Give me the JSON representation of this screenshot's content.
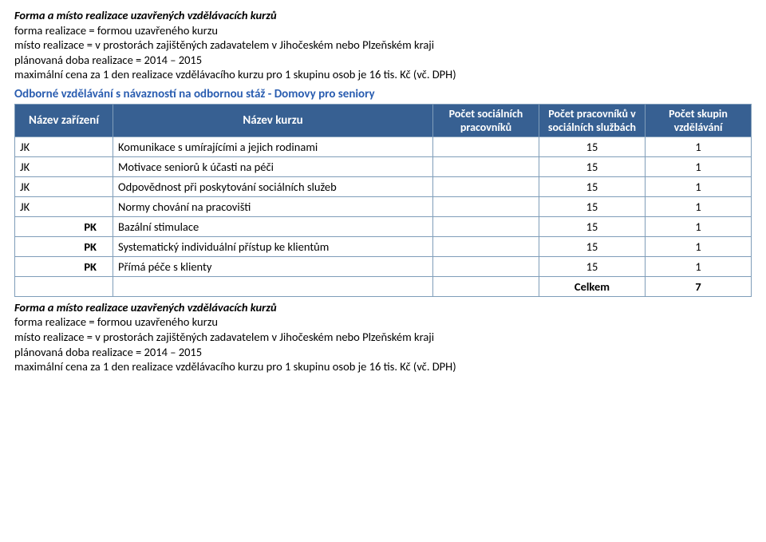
{
  "intro1": {
    "heading": "Forma a místo realizace uzavřených vzdělávacích kurzů",
    "l1": "forma realizace = formou uzavřeného kurzu",
    "l2": "místo realizace = v prostorách zajištěných zadavatelem v Jihočeském nebo Plzeňském kraji",
    "l3": "plánovaná doba realizace = 2014 – 2015",
    "l4": "maximální cena za 1 den realizace vzdělávacího kurzu pro 1 skupinu osob je 16 tis. Kč (vč. DPH)"
  },
  "section_title": "Odborné vzdělávání s návazností na odbornou stáž - Domovy pro seniory",
  "table": {
    "headers": {
      "c0": "Název zařízení",
      "c1": "Název kurzu",
      "c2": "Počet sociálních pracovníků",
      "c3": "Počet pracovníků v sociálních službách",
      "c4": "Počet skupin vzdělávání"
    },
    "rows": [
      {
        "facility": "JK",
        "fclass": "facility-jk",
        "course": "Komunikace s umírajícími a jejich rodinami",
        "v2": "",
        "v3": "15",
        "v4": "1"
      },
      {
        "facility": "JK",
        "fclass": "facility-jk",
        "course": "Motivace seniorů k účasti na péči",
        "v2": "",
        "v3": "15",
        "v4": "1"
      },
      {
        "facility": "JK",
        "fclass": "facility-jk",
        "course": "Odpovědnost při poskytování sociálních služeb",
        "v2": "",
        "v3": "15",
        "v4": "1"
      },
      {
        "facility": "JK",
        "fclass": "facility-jk",
        "course": "Normy chování na pracovišti",
        "v2": "",
        "v3": "15",
        "v4": "1"
      },
      {
        "facility": "PK",
        "fclass": "facility-pk",
        "course": "Bazální stimulace",
        "v2": "",
        "v3": "15",
        "v4": "1"
      },
      {
        "facility": "PK",
        "fclass": "facility-pk",
        "course": "Systematický individuální přístup ke klientům",
        "v2": "",
        "v3": "15",
        "v4": "1"
      },
      {
        "facility": "PK",
        "fclass": "facility-pk",
        "course": "Přímá péče s klienty",
        "v2": "",
        "v3": "15",
        "v4": "1"
      }
    ],
    "total": {
      "label": "Celkem",
      "value": "7"
    }
  },
  "intro2": {
    "heading": "Forma a místo realizace uzavřených vzdělávacích kurzů",
    "l1": "forma realizace = formou uzavřeného kurzu",
    "l2": "místo realizace = v prostorách zajištěných zadavatelem v Jihočeském nebo Plzeňském kraji",
    "l3": "plánovaná doba realizace = 2014 – 2015",
    "l4": "maximální cena za 1 den realizace vzdělávacího kurzu pro 1 skupinu osob je 16 tis. Kč (vč. DPH)"
  }
}
